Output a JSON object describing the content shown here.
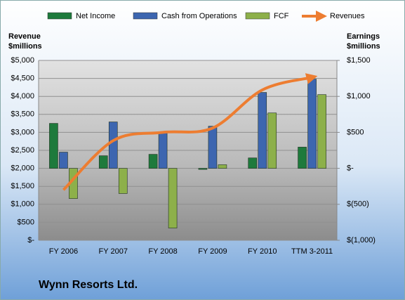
{
  "chart_data": {
    "type": "bar",
    "title": "Wynn Resorts Ltd.",
    "ylabel": [
      "Revenue",
      "$millions"
    ],
    "y2label": [
      "Earnings",
      "$millions"
    ],
    "categories": [
      "FY 2006",
      "FY 2007",
      "FY 2008",
      "FY 2009",
      "FY 2010",
      "TTM 3-2011"
    ],
    "series": [
      {
        "name": "Net Income",
        "type": "bar",
        "axis": "y2",
        "color": "#1e7a3c",
        "values": [
          625,
          175,
          195,
          -15,
          145,
          295
        ]
      },
      {
        "name": "Cash from Operations",
        "type": "bar",
        "axis": "y2",
        "color": "#3d66b0",
        "values": [
          225,
          645,
          490,
          585,
          1055,
          1240
        ]
      },
      {
        "name": "FCF",
        "type": "bar",
        "axis": "y2",
        "color": "#8db04a",
        "values": [
          -420,
          -350,
          -830,
          50,
          770,
          1025
        ]
      },
      {
        "name": "Revenues",
        "type": "line",
        "axis": "y",
        "color": "#ed7d31",
        "values": [
          1400,
          2770,
          3000,
          3120,
          4180,
          4530
        ]
      }
    ],
    "ylim": [
      0,
      5000
    ],
    "yticks": [
      {
        "value": 0,
        "label": "$-"
      },
      {
        "value": 500,
        "label": "$500"
      },
      {
        "value": 1000,
        "label": "$1,000"
      },
      {
        "value": 1500,
        "label": "$1,500"
      },
      {
        "value": 2000,
        "label": "$2,000"
      },
      {
        "value": 2500,
        "label": "$2,500"
      },
      {
        "value": 3000,
        "label": "$3,000"
      },
      {
        "value": 3500,
        "label": "$3,500"
      },
      {
        "value": 4000,
        "label": "$4,000"
      },
      {
        "value": 4500,
        "label": "$4,500"
      },
      {
        "value": 5000,
        "label": "$5,000"
      }
    ],
    "y2lim": [
      -1000,
      1500
    ],
    "y2ticks": [
      {
        "value": -1000,
        "label": "$(1,000)"
      },
      {
        "value": -500,
        "label": "$(500)"
      },
      {
        "value": 0,
        "label": "$-"
      },
      {
        "value": 500,
        "label": "$500"
      },
      {
        "value": 1000,
        "label": "$1,000"
      },
      {
        "value": 1500,
        "label": "$1,500"
      }
    ],
    "grid": true
  }
}
